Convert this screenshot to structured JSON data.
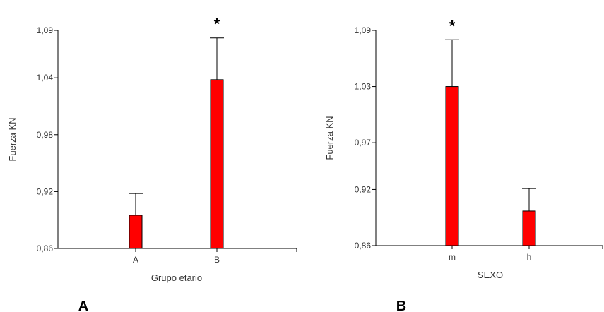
{
  "chart_data": [
    {
      "type": "bar",
      "panel_label": "A",
      "xlabel": "Grupo etario",
      "ylabel": "Fuerza KN",
      "categories": [
        "A",
        "B"
      ],
      "values": [
        0.895,
        1.038
      ],
      "error_upper": [
        0.918,
        1.082
      ],
      "significance": [
        "",
        "*"
      ],
      "ylim": [
        0.86,
        1.09
      ],
      "yticks": [
        "0,86",
        "0,92",
        "0,98",
        "1,04",
        "1,09"
      ],
      "ytick_values": [
        0.86,
        0.92,
        0.98,
        1.04,
        1.09
      ],
      "bar_color": "#ff0000",
      "grid": false
    },
    {
      "type": "bar",
      "panel_label": "B",
      "xlabel": "SEXO",
      "ylabel": "Fuerza KN",
      "categories": [
        "m",
        "h"
      ],
      "values": [
        1.03,
        0.897
      ],
      "error_upper": [
        1.08,
        0.921
      ],
      "significance": [
        "*",
        ""
      ],
      "ylim": [
        0.86,
        1.09
      ],
      "yticks": [
        "0,86",
        "0,92",
        "0,97",
        "1,03",
        "1,09"
      ],
      "ytick_values": [
        0.86,
        0.92,
        0.97,
        1.03,
        1.09
      ],
      "bar_color": "#ff0000",
      "grid": false
    }
  ]
}
